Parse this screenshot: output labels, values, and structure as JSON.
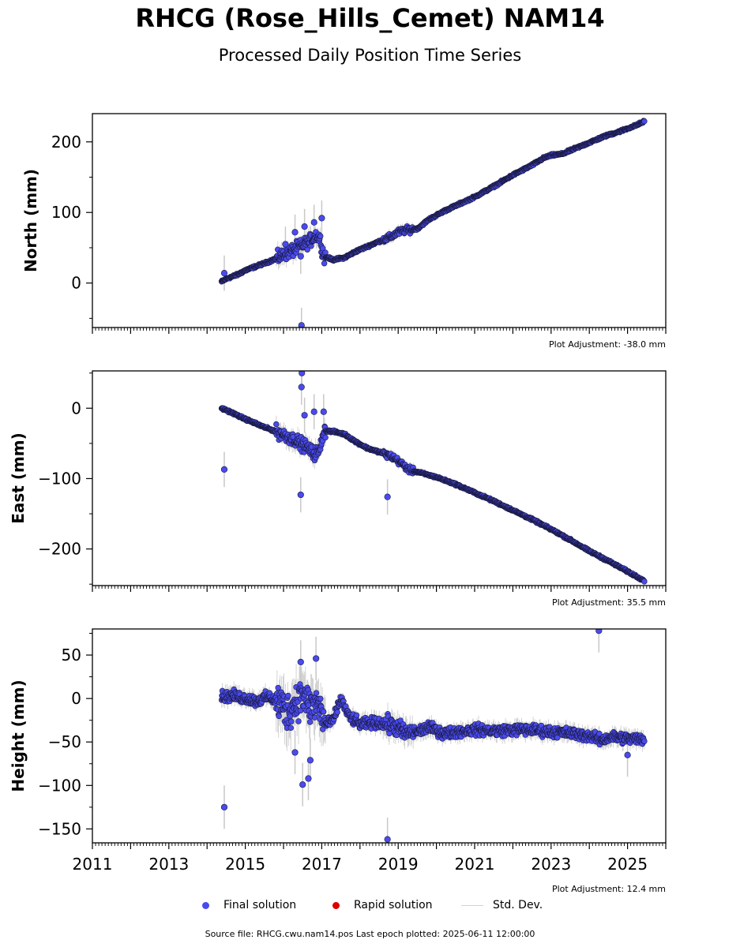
{
  "title": "RHCG (Rose_Hills_Cemet) NAM14",
  "subtitle": "Processed Daily Position Time Series",
  "legend": {
    "final_label": "Final solution",
    "rapid_label": "Rapid solution",
    "std_label": "Std. Dev.",
    "final_color": "#4a4aef",
    "rapid_color": "#dd0000",
    "std_color": "#d3d3d3"
  },
  "footer": "Source file: RHCG.cwu.nam14.pos  Last epoch plotted: 2025-06-11 12:00:00",
  "chart_data": [
    {
      "type": "scatter",
      "ylabel": "North (mm)",
      "adjustment": "Plot Adjustment: -38.0 mm",
      "xlim": [
        2011,
        2026
      ],
      "ylim": [
        -63,
        240
      ],
      "yticks": [
        0,
        100,
        200
      ],
      "xticks": [],
      "series": [
        {
          "x": [
            2014.38,
            2014.5,
            2014.8,
            2015.0,
            2015.3,
            2015.6,
            2015.9,
            2016.1,
            2016.3,
            2016.5,
            2016.7,
            2016.85,
            2016.95,
            2017.05,
            2017.3,
            2017.6,
            2017.9,
            2018.2,
            2018.5,
            2018.8,
            2019.0,
            2019.2,
            2019.5,
            2019.8,
            2020.2,
            2020.6,
            2021.0,
            2021.5,
            2022.0,
            2022.5,
            2022.8,
            2023.0,
            2023.3,
            2023.6,
            2024.0,
            2024.4,
            2024.8,
            2025.2,
            2025.44
          ],
          "y": [
            2,
            6,
            12,
            18,
            24,
            30,
            37,
            43,
            48,
            54,
            60,
            68,
            64,
            38,
            33,
            36,
            45,
            52,
            59,
            65,
            72,
            75,
            77,
            90,
            102,
            112,
            122,
            137,
            153,
            167,
            177,
            181,
            183,
            190,
            199,
            208,
            215,
            223,
            229
          ]
        }
      ],
      "outliers": [
        {
          "x": 2014.45,
          "y": 14
        },
        {
          "x": 2016.05,
          "y": 55
        },
        {
          "x": 2016.3,
          "y": 72
        },
        {
          "x": 2016.45,
          "y": 38
        },
        {
          "x": 2016.55,
          "y": 80
        },
        {
          "x": 2016.8,
          "y": 86
        },
        {
          "x": 2017.0,
          "y": 92
        },
        {
          "x": 2016.47,
          "y": -60
        }
      ]
    },
    {
      "type": "scatter",
      "ylabel": "East (mm)",
      "adjustment": "Plot Adjustment: 35.5 mm",
      "xlim": [
        2011,
        2026
      ],
      "ylim": [
        -252,
        53
      ],
      "yticks": [
        -200,
        -100,
        0
      ],
      "xticks": [],
      "series": [
        {
          "x": [
            2014.38,
            2014.6,
            2014.9,
            2015.2,
            2015.5,
            2015.8,
            2016.0,
            2016.3,
            2016.6,
            2016.8,
            2016.95,
            2017.05,
            2017.3,
            2017.6,
            2017.9,
            2018.2,
            2018.5,
            2018.8,
            2019.0,
            2019.3,
            2019.6,
            2020.0,
            2020.5,
            2021.0,
            2021.5,
            2022.0,
            2022.5,
            2023.0,
            2023.5,
            2024.0,
            2024.5,
            2025.0,
            2025.44
          ],
          "y": [
            0,
            -5,
            -13,
            -20,
            -27,
            -33,
            -38,
            -45,
            -55,
            -65,
            -60,
            -32,
            -33,
            -37,
            -48,
            -57,
            -62,
            -68,
            -75,
            -88,
            -92,
            -98,
            -108,
            -120,
            -132,
            -145,
            -158,
            -172,
            -187,
            -203,
            -217,
            -232,
            -245
          ]
        }
      ],
      "outliers": [
        {
          "x": 2014.45,
          "y": -87
        },
        {
          "x": 2016.45,
          "y": -123
        },
        {
          "x": 2016.47,
          "y": 30
        },
        {
          "x": 2016.48,
          "y": 50
        },
        {
          "x": 2016.55,
          "y": -10
        },
        {
          "x": 2016.8,
          "y": -5
        },
        {
          "x": 2017.05,
          "y": -5
        },
        {
          "x": 2018.72,
          "y": -126
        }
      ]
    },
    {
      "type": "scatter",
      "ylabel": "Height (mm)",
      "adjustment": "Plot Adjustment: 12.4 mm",
      "xlim": [
        2011,
        2026
      ],
      "ylim": [
        -166,
        80
      ],
      "yticks": [
        -150,
        -100,
        -50,
        0,
        50
      ],
      "xticks": [
        "2011",
        "2013",
        "2015",
        "2017",
        "2019",
        "2021",
        "2023",
        "2025"
      ],
      "series": [
        {
          "x": [
            2014.38,
            2014.7,
            2015.0,
            2015.3,
            2015.6,
            2015.9,
            2016.1,
            2016.3,
            2016.5,
            2016.7,
            2016.9,
            2017.1,
            2017.3,
            2017.5,
            2017.7,
            2018.0,
            2018.3,
            2018.6,
            2018.9,
            2019.2,
            2019.5,
            2019.8,
            2020.2,
            2020.6,
            2021.0,
            2021.5,
            2022.0,
            2022.5,
            2023.0,
            2023.5,
            2024.0,
            2024.3,
            2024.6,
            2025.0,
            2025.44
          ],
          "y": [
            2,
            3,
            0,
            -3,
            2,
            -5,
            -15,
            -5,
            5,
            -10,
            -5,
            -30,
            -25,
            0,
            -20,
            -30,
            -28,
            -28,
            -32,
            -40,
            -38,
            -33,
            -40,
            -38,
            -36,
            -37,
            -36,
            -36,
            -38,
            -40,
            -43,
            -48,
            -44,
            -46,
            -47
          ]
        }
      ],
      "outliers": [
        {
          "x": 2014.45,
          "y": -125
        },
        {
          "x": 2016.3,
          "y": -62
        },
        {
          "x": 2016.5,
          "y": -99
        },
        {
          "x": 2016.65,
          "y": -92
        },
        {
          "x": 2016.7,
          "y": -71
        },
        {
          "x": 2016.45,
          "y": 42
        },
        {
          "x": 2016.85,
          "y": 46
        },
        {
          "x": 2018.72,
          "y": -162
        },
        {
          "x": 2024.25,
          "y": 78
        },
        {
          "x": 2025.0,
          "y": -65
        }
      ]
    }
  ]
}
